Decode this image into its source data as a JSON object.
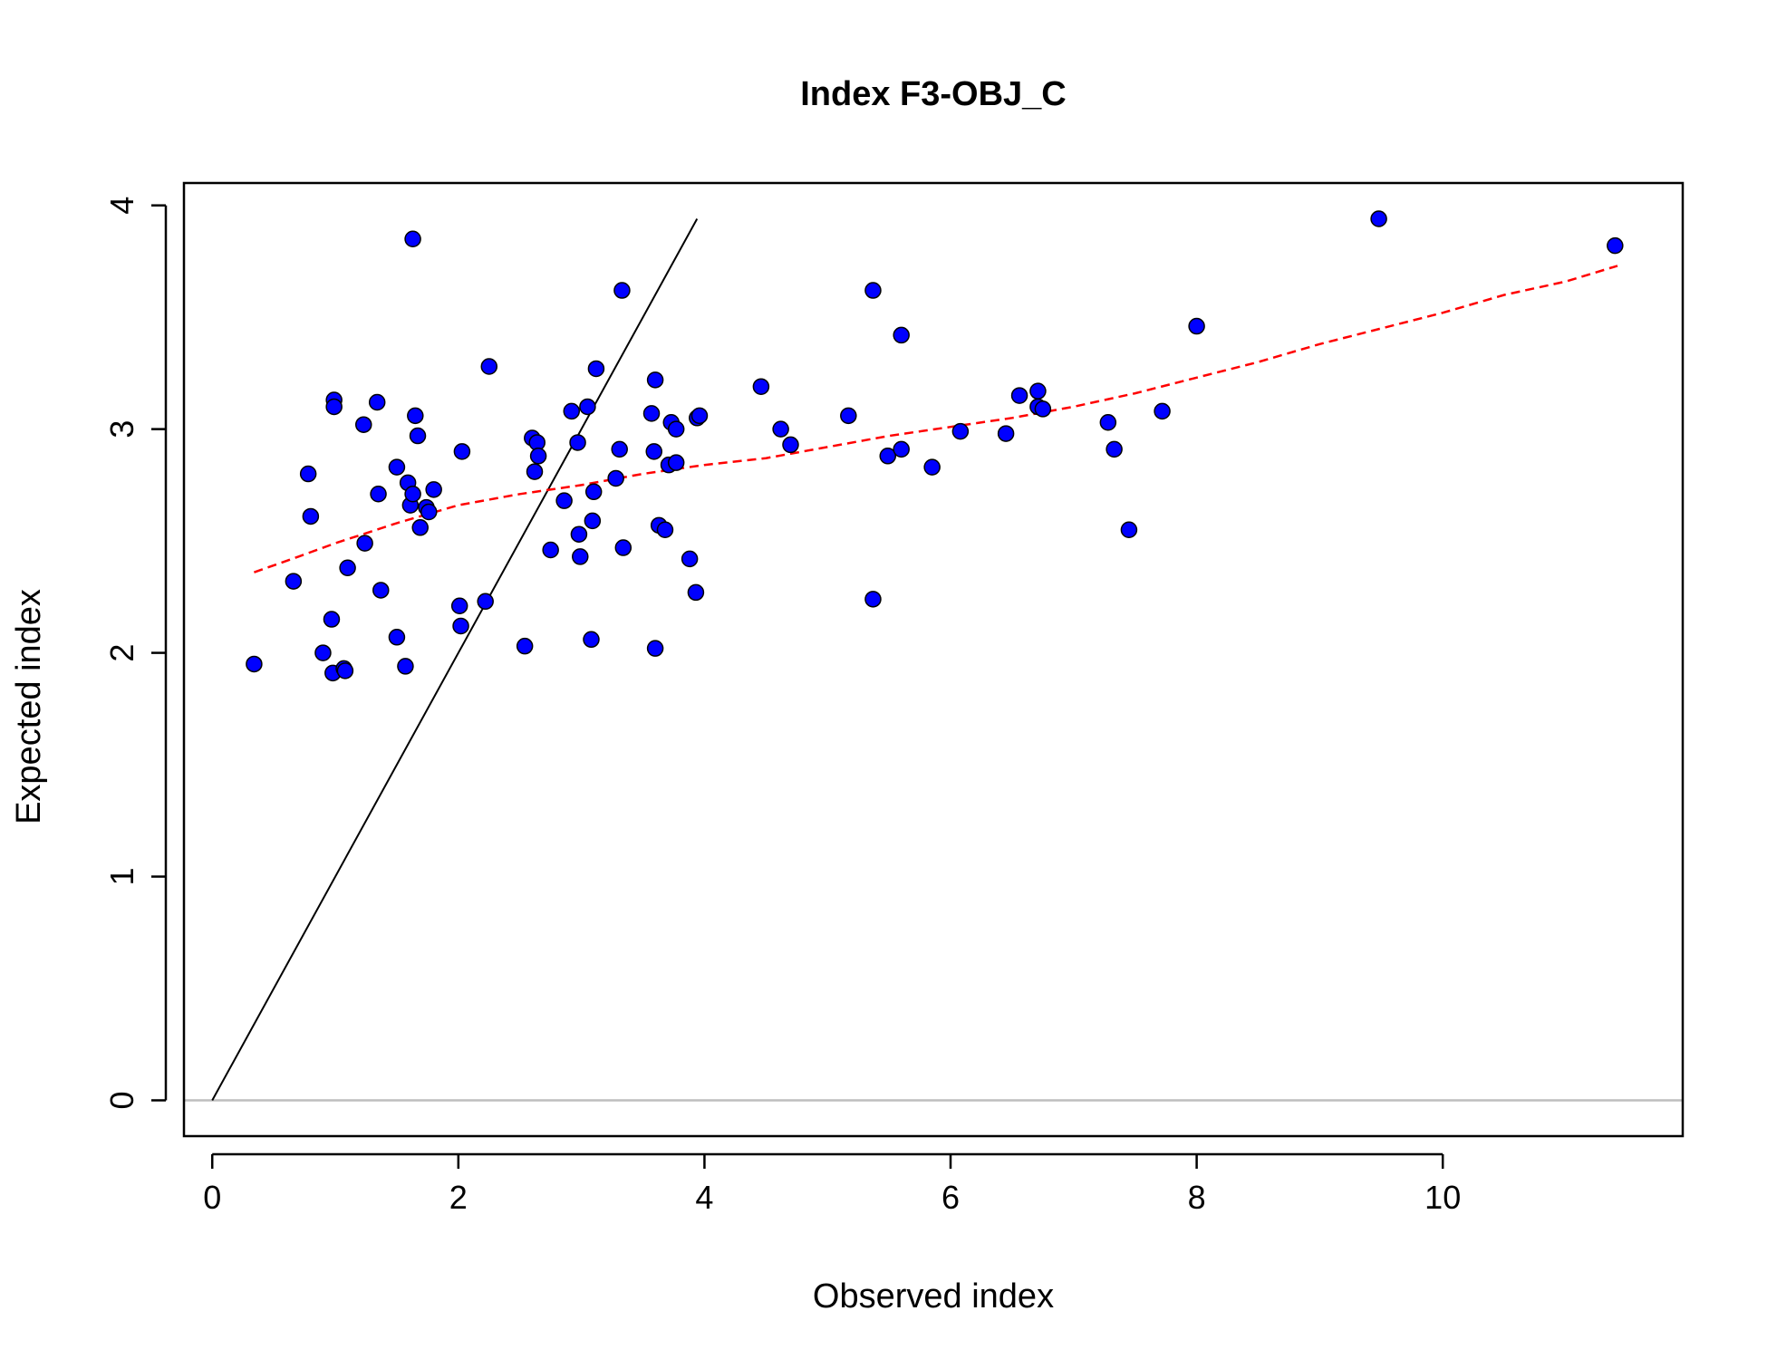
{
  "chart_data": {
    "type": "scatter",
    "title": "Index F3-OBJ_C",
    "xlabel": "Observed index",
    "ylabel": "Expected index",
    "xlim": [
      -0.23,
      11.95
    ],
    "ylim": [
      -0.16,
      4.1
    ],
    "x_ticks": [
      "0",
      "2",
      "4",
      "6",
      "8",
      "10"
    ],
    "y_ticks": [
      "0",
      "1",
      "2",
      "3",
      "4"
    ],
    "grid": false,
    "legend": "none",
    "point_fill": "#0000ff",
    "point_edge": "#000000",
    "trend_color": "#ff0000",
    "reference_color": "#000000",
    "zero_line_color": "#bebebe",
    "points": [
      {
        "x": 0.34,
        "y": 1.95
      },
      {
        "x": 0.66,
        "y": 2.32
      },
      {
        "x": 0.78,
        "y": 2.8
      },
      {
        "x": 0.8,
        "y": 2.61
      },
      {
        "x": 0.9,
        "y": 2.0
      },
      {
        "x": 0.97,
        "y": 2.15
      },
      {
        "x": 0.98,
        "y": 1.91
      },
      {
        "x": 0.99,
        "y": 3.13
      },
      {
        "x": 0.99,
        "y": 3.1
      },
      {
        "x": 1.07,
        "y": 1.93
      },
      {
        "x": 1.08,
        "y": 1.92
      },
      {
        "x": 1.1,
        "y": 2.38
      },
      {
        "x": 1.23,
        "y": 3.02
      },
      {
        "x": 1.24,
        "y": 2.49
      },
      {
        "x": 1.34,
        "y": 3.12
      },
      {
        "x": 1.35,
        "y": 2.71
      },
      {
        "x": 1.37,
        "y": 2.28
      },
      {
        "x": 1.5,
        "y": 2.83
      },
      {
        "x": 1.5,
        "y": 2.07
      },
      {
        "x": 1.57,
        "y": 1.94
      },
      {
        "x": 1.59,
        "y": 2.76
      },
      {
        "x": 1.61,
        "y": 2.66
      },
      {
        "x": 1.63,
        "y": 2.71
      },
      {
        "x": 1.63,
        "y": 3.85
      },
      {
        "x": 1.65,
        "y": 3.06
      },
      {
        "x": 1.67,
        "y": 2.97
      },
      {
        "x": 1.69,
        "y": 2.56
      },
      {
        "x": 1.74,
        "y": 2.65
      },
      {
        "x": 1.76,
        "y": 2.63
      },
      {
        "x": 1.8,
        "y": 2.73
      },
      {
        "x": 2.01,
        "y": 2.21
      },
      {
        "x": 2.02,
        "y": 2.12
      },
      {
        "x": 2.03,
        "y": 2.9
      },
      {
        "x": 2.22,
        "y": 2.23
      },
      {
        "x": 2.25,
        "y": 3.28
      },
      {
        "x": 2.54,
        "y": 2.03
      },
      {
        "x": 2.6,
        "y": 2.96
      },
      {
        "x": 2.62,
        "y": 2.81
      },
      {
        "x": 2.64,
        "y": 2.94
      },
      {
        "x": 2.65,
        "y": 2.88
      },
      {
        "x": 2.75,
        "y": 2.46
      },
      {
        "x": 2.86,
        "y": 2.68
      },
      {
        "x": 2.92,
        "y": 3.08
      },
      {
        "x": 2.97,
        "y": 2.94
      },
      {
        "x": 2.98,
        "y": 2.53
      },
      {
        "x": 2.99,
        "y": 2.43
      },
      {
        "x": 3.05,
        "y": 3.1
      },
      {
        "x": 3.08,
        "y": 2.06
      },
      {
        "x": 3.09,
        "y": 2.59
      },
      {
        "x": 3.1,
        "y": 2.72
      },
      {
        "x": 3.12,
        "y": 3.27
      },
      {
        "x": 3.28,
        "y": 2.78
      },
      {
        "x": 3.31,
        "y": 2.91
      },
      {
        "x": 3.33,
        "y": 3.62
      },
      {
        "x": 3.34,
        "y": 2.47
      },
      {
        "x": 3.57,
        "y": 3.07
      },
      {
        "x": 3.59,
        "y": 2.9
      },
      {
        "x": 3.6,
        "y": 2.02
      },
      {
        "x": 3.6,
        "y": 3.22
      },
      {
        "x": 3.63,
        "y": 2.57
      },
      {
        "x": 3.68,
        "y": 2.55
      },
      {
        "x": 3.71,
        "y": 2.84
      },
      {
        "x": 3.73,
        "y": 3.03
      },
      {
        "x": 3.77,
        "y": 3.0
      },
      {
        "x": 3.77,
        "y": 2.85
      },
      {
        "x": 3.88,
        "y": 2.42
      },
      {
        "x": 3.93,
        "y": 2.27
      },
      {
        "x": 3.94,
        "y": 3.05
      },
      {
        "x": 3.96,
        "y": 3.06
      },
      {
        "x": 4.46,
        "y": 3.19
      },
      {
        "x": 4.62,
        "y": 3.0
      },
      {
        "x": 4.7,
        "y": 2.93
      },
      {
        "x": 5.17,
        "y": 3.06
      },
      {
        "x": 5.37,
        "y": 3.62
      },
      {
        "x": 5.37,
        "y": 2.24
      },
      {
        "x": 5.49,
        "y": 2.88
      },
      {
        "x": 5.6,
        "y": 3.42
      },
      {
        "x": 5.6,
        "y": 2.91
      },
      {
        "x": 5.85,
        "y": 2.83
      },
      {
        "x": 6.08,
        "y": 2.99
      },
      {
        "x": 6.45,
        "y": 2.98
      },
      {
        "x": 6.56,
        "y": 3.15
      },
      {
        "x": 6.71,
        "y": 3.17
      },
      {
        "x": 6.71,
        "y": 3.1
      },
      {
        "x": 6.75,
        "y": 3.09
      },
      {
        "x": 7.28,
        "y": 3.03
      },
      {
        "x": 7.33,
        "y": 2.91
      },
      {
        "x": 7.45,
        "y": 2.55
      },
      {
        "x": 7.72,
        "y": 3.08
      },
      {
        "x": 8.0,
        "y": 3.46
      },
      {
        "x": 9.48,
        "y": 3.94
      },
      {
        "x": 11.4,
        "y": 3.82
      }
    ],
    "reference_line": [
      {
        "x": 0.0,
        "y": 0.0
      },
      {
        "x": 3.94,
        "y": 3.94
      }
    ],
    "trend_line": [
      {
        "x": 0.34,
        "y": 2.36
      },
      {
        "x": 0.7,
        "y": 2.43
      },
      {
        "x": 1.0,
        "y": 2.49
      },
      {
        "x": 1.5,
        "y": 2.58
      },
      {
        "x": 2.0,
        "y": 2.66
      },
      {
        "x": 2.5,
        "y": 2.71
      },
      {
        "x": 3.0,
        "y": 2.75
      },
      {
        "x": 3.5,
        "y": 2.8
      },
      {
        "x": 4.0,
        "y": 2.84
      },
      {
        "x": 4.5,
        "y": 2.87
      },
      {
        "x": 5.0,
        "y": 2.92
      },
      {
        "x": 5.5,
        "y": 2.97
      },
      {
        "x": 6.0,
        "y": 3.01
      },
      {
        "x": 6.5,
        "y": 3.05
      },
      {
        "x": 7.0,
        "y": 3.1
      },
      {
        "x": 7.5,
        "y": 3.16
      },
      {
        "x": 8.0,
        "y": 3.23
      },
      {
        "x": 8.5,
        "y": 3.3
      },
      {
        "x": 9.0,
        "y": 3.38
      },
      {
        "x": 9.5,
        "y": 3.45
      },
      {
        "x": 10.0,
        "y": 3.52
      },
      {
        "x": 10.5,
        "y": 3.6
      },
      {
        "x": 11.0,
        "y": 3.66
      },
      {
        "x": 11.42,
        "y": 3.73
      }
    ],
    "zero_line_y": 0
  }
}
